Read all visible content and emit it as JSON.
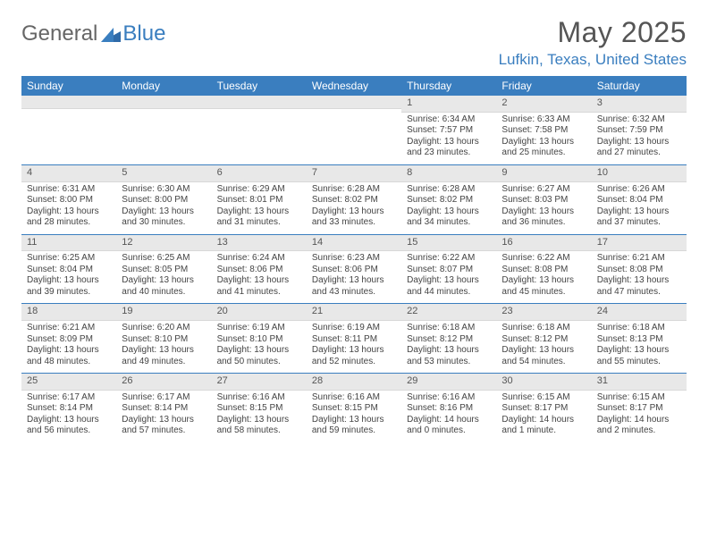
{
  "logo": {
    "part1": "General",
    "part2": "Blue"
  },
  "title": "May 2025",
  "location": "Lufkin, Texas, United States",
  "colors": {
    "accent": "#3a7ebf",
    "header_bg": "#3a7ebf",
    "header_text": "#ffffff",
    "daynum_bg": "#e8e8e8",
    "text": "#444444",
    "title_color": "#555555"
  },
  "day_names": [
    "Sunday",
    "Monday",
    "Tuesday",
    "Wednesday",
    "Thursday",
    "Friday",
    "Saturday"
  ],
  "weeks": [
    [
      {
        "day": "",
        "sunrise": "",
        "sunset": "",
        "daylight": ""
      },
      {
        "day": "",
        "sunrise": "",
        "sunset": "",
        "daylight": ""
      },
      {
        "day": "",
        "sunrise": "",
        "sunset": "",
        "daylight": ""
      },
      {
        "day": "",
        "sunrise": "",
        "sunset": "",
        "daylight": ""
      },
      {
        "day": "1",
        "sunrise": "Sunrise: 6:34 AM",
        "sunset": "Sunset: 7:57 PM",
        "daylight": "Daylight: 13 hours and 23 minutes."
      },
      {
        "day": "2",
        "sunrise": "Sunrise: 6:33 AM",
        "sunset": "Sunset: 7:58 PM",
        "daylight": "Daylight: 13 hours and 25 minutes."
      },
      {
        "day": "3",
        "sunrise": "Sunrise: 6:32 AM",
        "sunset": "Sunset: 7:59 PM",
        "daylight": "Daylight: 13 hours and 27 minutes."
      }
    ],
    [
      {
        "day": "4",
        "sunrise": "Sunrise: 6:31 AM",
        "sunset": "Sunset: 8:00 PM",
        "daylight": "Daylight: 13 hours and 28 minutes."
      },
      {
        "day": "5",
        "sunrise": "Sunrise: 6:30 AM",
        "sunset": "Sunset: 8:00 PM",
        "daylight": "Daylight: 13 hours and 30 minutes."
      },
      {
        "day": "6",
        "sunrise": "Sunrise: 6:29 AM",
        "sunset": "Sunset: 8:01 PM",
        "daylight": "Daylight: 13 hours and 31 minutes."
      },
      {
        "day": "7",
        "sunrise": "Sunrise: 6:28 AM",
        "sunset": "Sunset: 8:02 PM",
        "daylight": "Daylight: 13 hours and 33 minutes."
      },
      {
        "day": "8",
        "sunrise": "Sunrise: 6:28 AM",
        "sunset": "Sunset: 8:02 PM",
        "daylight": "Daylight: 13 hours and 34 minutes."
      },
      {
        "day": "9",
        "sunrise": "Sunrise: 6:27 AM",
        "sunset": "Sunset: 8:03 PM",
        "daylight": "Daylight: 13 hours and 36 minutes."
      },
      {
        "day": "10",
        "sunrise": "Sunrise: 6:26 AM",
        "sunset": "Sunset: 8:04 PM",
        "daylight": "Daylight: 13 hours and 37 minutes."
      }
    ],
    [
      {
        "day": "11",
        "sunrise": "Sunrise: 6:25 AM",
        "sunset": "Sunset: 8:04 PM",
        "daylight": "Daylight: 13 hours and 39 minutes."
      },
      {
        "day": "12",
        "sunrise": "Sunrise: 6:25 AM",
        "sunset": "Sunset: 8:05 PM",
        "daylight": "Daylight: 13 hours and 40 minutes."
      },
      {
        "day": "13",
        "sunrise": "Sunrise: 6:24 AM",
        "sunset": "Sunset: 8:06 PM",
        "daylight": "Daylight: 13 hours and 41 minutes."
      },
      {
        "day": "14",
        "sunrise": "Sunrise: 6:23 AM",
        "sunset": "Sunset: 8:06 PM",
        "daylight": "Daylight: 13 hours and 43 minutes."
      },
      {
        "day": "15",
        "sunrise": "Sunrise: 6:22 AM",
        "sunset": "Sunset: 8:07 PM",
        "daylight": "Daylight: 13 hours and 44 minutes."
      },
      {
        "day": "16",
        "sunrise": "Sunrise: 6:22 AM",
        "sunset": "Sunset: 8:08 PM",
        "daylight": "Daylight: 13 hours and 45 minutes."
      },
      {
        "day": "17",
        "sunrise": "Sunrise: 6:21 AM",
        "sunset": "Sunset: 8:08 PM",
        "daylight": "Daylight: 13 hours and 47 minutes."
      }
    ],
    [
      {
        "day": "18",
        "sunrise": "Sunrise: 6:21 AM",
        "sunset": "Sunset: 8:09 PM",
        "daylight": "Daylight: 13 hours and 48 minutes."
      },
      {
        "day": "19",
        "sunrise": "Sunrise: 6:20 AM",
        "sunset": "Sunset: 8:10 PM",
        "daylight": "Daylight: 13 hours and 49 minutes."
      },
      {
        "day": "20",
        "sunrise": "Sunrise: 6:19 AM",
        "sunset": "Sunset: 8:10 PM",
        "daylight": "Daylight: 13 hours and 50 minutes."
      },
      {
        "day": "21",
        "sunrise": "Sunrise: 6:19 AM",
        "sunset": "Sunset: 8:11 PM",
        "daylight": "Daylight: 13 hours and 52 minutes."
      },
      {
        "day": "22",
        "sunrise": "Sunrise: 6:18 AM",
        "sunset": "Sunset: 8:12 PM",
        "daylight": "Daylight: 13 hours and 53 minutes."
      },
      {
        "day": "23",
        "sunrise": "Sunrise: 6:18 AM",
        "sunset": "Sunset: 8:12 PM",
        "daylight": "Daylight: 13 hours and 54 minutes."
      },
      {
        "day": "24",
        "sunrise": "Sunrise: 6:18 AM",
        "sunset": "Sunset: 8:13 PM",
        "daylight": "Daylight: 13 hours and 55 minutes."
      }
    ],
    [
      {
        "day": "25",
        "sunrise": "Sunrise: 6:17 AM",
        "sunset": "Sunset: 8:14 PM",
        "daylight": "Daylight: 13 hours and 56 minutes."
      },
      {
        "day": "26",
        "sunrise": "Sunrise: 6:17 AM",
        "sunset": "Sunset: 8:14 PM",
        "daylight": "Daylight: 13 hours and 57 minutes."
      },
      {
        "day": "27",
        "sunrise": "Sunrise: 6:16 AM",
        "sunset": "Sunset: 8:15 PM",
        "daylight": "Daylight: 13 hours and 58 minutes."
      },
      {
        "day": "28",
        "sunrise": "Sunrise: 6:16 AM",
        "sunset": "Sunset: 8:15 PM",
        "daylight": "Daylight: 13 hours and 59 minutes."
      },
      {
        "day": "29",
        "sunrise": "Sunrise: 6:16 AM",
        "sunset": "Sunset: 8:16 PM",
        "daylight": "Daylight: 14 hours and 0 minutes."
      },
      {
        "day": "30",
        "sunrise": "Sunrise: 6:15 AM",
        "sunset": "Sunset: 8:17 PM",
        "daylight": "Daylight: 14 hours and 1 minute."
      },
      {
        "day": "31",
        "sunrise": "Sunrise: 6:15 AM",
        "sunset": "Sunset: 8:17 PM",
        "daylight": "Daylight: 14 hours and 2 minutes."
      }
    ]
  ]
}
